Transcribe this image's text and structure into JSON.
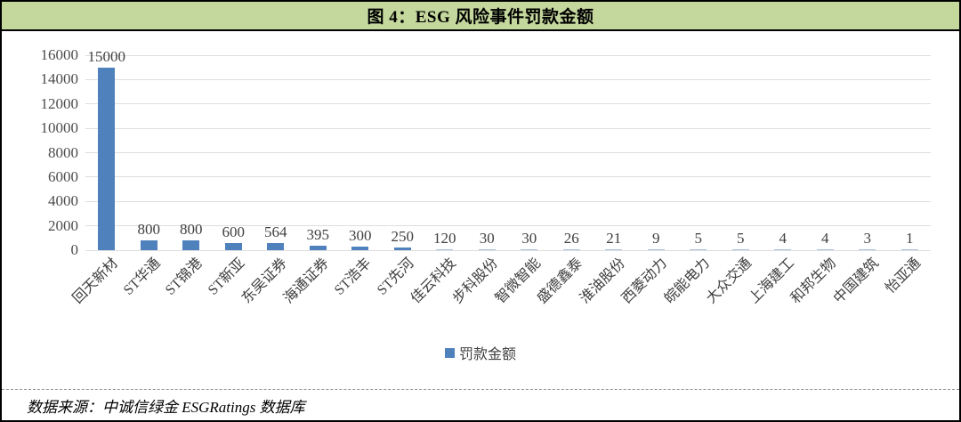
{
  "title": "图 4：ESG 风险事件罚款金额",
  "source": "数据来源：中诚信绿金 ESGRatings 数据库",
  "colors": {
    "title_bg": "#c4d79d",
    "bar": "#4f81bd",
    "bar_tiny": "#a9c3e2",
    "gridline": "#dedede",
    "axis_text": "#4d4d4d"
  },
  "chart_data": {
    "type": "bar",
    "title": "图 4：ESG 风险事件罚款金额",
    "legend": "罚款金额",
    "legend_position": "bottom",
    "grid": true,
    "data_labels": true,
    "ylim": [
      0,
      16000
    ],
    "ytick_interval": 2000,
    "yticks": [
      0,
      2000,
      4000,
      6000,
      8000,
      10000,
      12000,
      14000,
      16000
    ],
    "categories": [
      "回天新材",
      "ST华通",
      "ST锦港",
      "ST新亚",
      "东吴证券",
      "海通证券",
      "ST浩丰",
      "ST先河",
      "佳云科技",
      "步科股份",
      "智微智能",
      "盛德鑫泰",
      "淮油股份",
      "西菱动力",
      "皖能电力",
      "大众交通",
      "上海建工",
      "和邦生物",
      "中国建筑",
      "怡亚通"
    ],
    "values": [
      15000,
      800,
      800,
      600,
      564,
      395,
      300,
      250,
      120,
      30,
      30,
      26,
      21,
      9,
      5,
      5,
      4,
      4,
      3,
      1
    ]
  }
}
